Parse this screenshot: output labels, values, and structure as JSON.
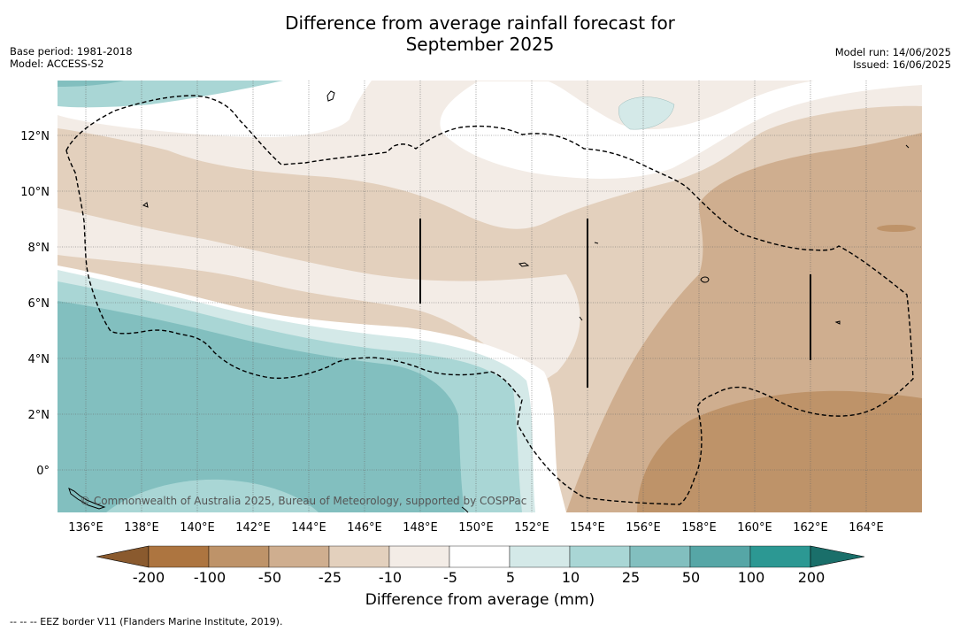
{
  "title": {
    "line1": "Difference from average rainfall forecast for",
    "line2": "September 2025"
  },
  "meta_left": {
    "base_period": "Base period: 1981-2018",
    "model": "Model: ACCESS-S2"
  },
  "meta_right": {
    "model_run": "Model run: 14/06/2025",
    "issued": "Issued: 16/06/2025"
  },
  "axes": {
    "lon_ticks": [
      "136°E",
      "138°E",
      "140°E",
      "142°E",
      "144°E",
      "146°E",
      "148°E",
      "150°E",
      "152°E",
      "154°E",
      "156°E",
      "158°E",
      "160°E",
      "162°E",
      "164°E"
    ],
    "lat_ticks": [
      "12°N",
      "10°N",
      "8°N",
      "6°N",
      "4°N",
      "2°N",
      "0°"
    ]
  },
  "copyright": "© Commonwealth of Australia 2025, Bureau of Meteorology, supported by COSPPac",
  "colorbar": {
    "title": "Difference from average (mm)",
    "labels": [
      "-200",
      "-100",
      "-50",
      "-25",
      "-10",
      "-5",
      "5",
      "10",
      "25",
      "50",
      "100",
      "200"
    ],
    "colors": [
      "#8a5a2e",
      "#ad7540",
      "#be9369",
      "#cfae8f",
      "#e3d0bd",
      "#f3ece6",
      "#ffffff",
      "#d4e9e8",
      "#a9d6d5",
      "#82bfbf",
      "#56a6a6",
      "#2c9893",
      "#1a6f6a"
    ]
  },
  "footnote": "--  --  -- EEZ border V11 (Flanders Marine Institute, 2019)."
}
